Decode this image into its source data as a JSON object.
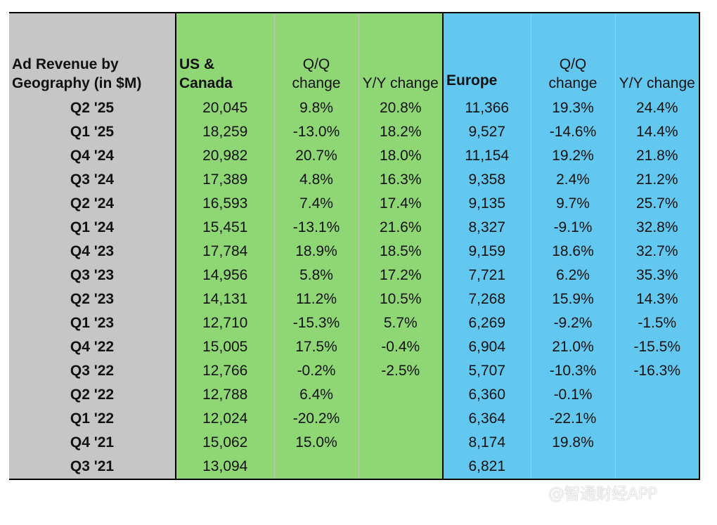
{
  "table": {
    "header": {
      "title": "Ad Revenue by Geography (in $M)",
      "us_canada": "US & Canada",
      "us_qq": "Q/Q change",
      "us_yy": "Y/Y change",
      "europe": "Europe",
      "eu_qq": "Q/Q change",
      "eu_yy": "Y/Y change"
    },
    "rows": [
      [
        "Q2 '25",
        "20,045",
        "9.8%",
        "20.8%",
        "11,366",
        "19.3%",
        "24.4%"
      ],
      [
        "Q1 '25",
        "18,259",
        "-13.0%",
        "18.2%",
        "9,527",
        "-14.6%",
        "14.4%"
      ],
      [
        "Q4 '24",
        "20,982",
        "20.7%",
        "18.0%",
        "11,154",
        "19.2%",
        "21.8%"
      ],
      [
        "Q3 '24",
        "17,389",
        "4.8%",
        "16.3%",
        "9,358",
        "2.4%",
        "21.2%"
      ],
      [
        "Q2 '24",
        "16,593",
        "7.4%",
        "17.4%",
        "9,135",
        "9.7%",
        "25.7%"
      ],
      [
        "Q1 '24",
        "15,451",
        "-13.1%",
        "21.6%",
        "8,327",
        "-9.1%",
        "32.8%"
      ],
      [
        "Q4 '23",
        "17,784",
        "18.9%",
        "18.5%",
        "9,159",
        "18.6%",
        "32.7%"
      ],
      [
        "Q3 '23",
        "14,956",
        "5.8%",
        "17.2%",
        "7,721",
        "6.2%",
        "35.3%"
      ],
      [
        "Q2 '23",
        "14,131",
        "11.2%",
        "10.5%",
        "7,268",
        "15.9%",
        "14.3%"
      ],
      [
        "Q1 '23",
        "12,710",
        "-15.3%",
        "5.7%",
        "6,269",
        "-9.2%",
        "-1.5%"
      ],
      [
        "Q4 '22",
        "15,005",
        "17.5%",
        "-0.4%",
        "6,904",
        "21.0%",
        "-15.5%"
      ],
      [
        "Q3 '22",
        "12,766",
        "-0.2%",
        "-2.5%",
        "5,707",
        "-10.3%",
        "-16.3%"
      ],
      [
        "Q2 '22",
        "12,788",
        "6.4%",
        "",
        "6,360",
        "-0.1%",
        ""
      ],
      [
        "Q1 '22",
        "12,024",
        "-20.2%",
        "",
        "6,364",
        "-22.1%",
        ""
      ],
      [
        "Q4 '21",
        "15,062",
        "15.0%",
        "",
        "8,174",
        "19.8%",
        ""
      ],
      [
        "Q3 '21",
        "13,094",
        "",
        "",
        "6,821",
        "",
        ""
      ]
    ]
  },
  "watermark": "@智通财经APP",
  "colors": {
    "label_bg": "#c6c6c6",
    "us_bg": "#8fd675",
    "europe_bg": "#63c8f0"
  }
}
